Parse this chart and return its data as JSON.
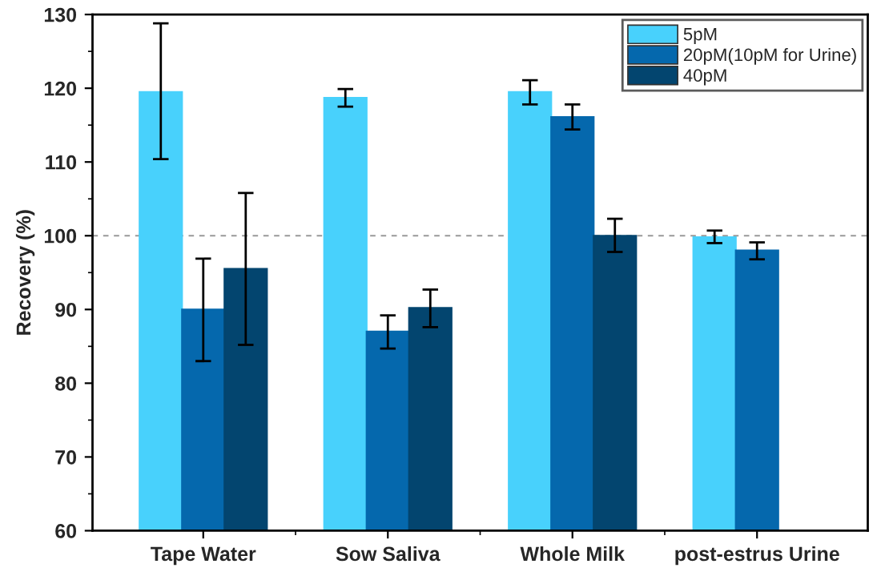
{
  "chart_data": {
    "type": "bar",
    "ylabel": "Recovery (%)",
    "categories": [
      "Tape Water",
      "Sow Saliva",
      "Whole Milk",
      "post-estrus Urine"
    ],
    "series": [
      {
        "name": "5pM",
        "color": "#48d1fc",
        "values": [
          119.5,
          118.7,
          119.5,
          99.8
        ],
        "errors": [
          [
            110.4,
            128.8
          ],
          [
            117.5,
            119.9
          ],
          [
            117.8,
            121.1
          ],
          [
            99.0,
            100.7
          ]
        ]
      },
      {
        "name": "20pM(10pM for Urine)",
        "color": "#0568ad",
        "values": [
          90,
          87,
          116.1,
          98
        ],
        "errors": [
          [
            83,
            96.9
          ],
          [
            84.7,
            89.2
          ],
          [
            114.4,
            117.8
          ],
          [
            96.8,
            99.1
          ]
        ]
      },
      {
        "name": "40pM",
        "color": "#03456f",
        "values": [
          95.5,
          90.2,
          100,
          null
        ],
        "errors": [
          [
            85.2,
            105.8
          ],
          [
            87.6,
            92.7
          ],
          [
            97.8,
            102.3
          ],
          null
        ]
      }
    ],
    "ylim": [
      60,
      130
    ],
    "yticks": [
      60,
      70,
      80,
      90,
      100,
      110,
      120,
      130
    ],
    "ref_lines": [
      {
        "axis": "y",
        "value": 100,
        "color": "#999999",
        "line_style": "dashed"
      }
    ],
    "legend": "top right",
    "grid": false
  }
}
